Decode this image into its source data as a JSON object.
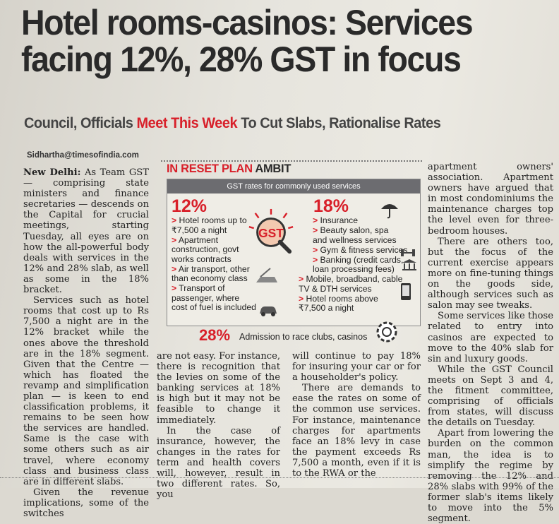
{
  "headline": {
    "line1": "Hotel rooms-casinos: Services",
    "line2": "facing 12%, 28% GST in focus"
  },
  "deck": {
    "part1": "Council, Officials ",
    "part2_red": "Meet This Week",
    "part3": " To Cut Slabs, Rationalise Rates"
  },
  "byline": "Sidhartha@timesofindia.com",
  "col1": {
    "dateline": "New Delhi:",
    "p1": " As Team GST — comprising state ministers and finance secretaries — descends on the Capital for crucial meetings, starting Tuesday, all eyes are on how the all-powerful body deals with services in the 12% and 28% slab, as well as some in the 18% bracket.",
    "p2": "Services such as hotel rooms that cost up to Rs 7,500 a night are in the 12% bracket while the ones above the threshold are in the 18% segment. Given that the Centre — which has floated the revamp and simplification plan — is keen to end classification problems, it remains to be seen how the services are handled. Same is the case with some others such as air travel, where economy class and business class are in different slabs.",
    "p3": "Given the revenue implications, some of the switches"
  },
  "col2": {
    "p1": "are not easy. For instance, there is recognition that the levies on some of the banking services at 18% is high but it may not be feasible to change it immediately.",
    "p2": "In the case of insurance, however, the changes in the rates for term and health covers will, however, result in two different rates. So, you"
  },
  "col3": {
    "p1": "will continue to pay 18% for insuring your car or for a householder's policy.",
    "p2": "There are demands to ease the rates on some of the common use services. For instance, maintenance charges for apartments face an 18% levy in case the payment exceeds Rs 7,500 a month, even if it is to the RWA or the"
  },
  "col4": {
    "p1": "apartment owners' association. Apartment owners have argued that in most condominiums the maintenance charges top the level even for three-bedroom houses.",
    "p2": "There are others too, but the focus of the current exercise appears more on fine-tuning things on the goods side, although services such as salon may see tweaks.",
    "p3": "Some services like those related to entry into casinos are expected to move to the 40% slab for sin and luxury goods.",
    "p4": "While the GST Council meets on Sept 3 and 4, the fitment committee, comprising of officials from states, will discuss the details on Tuesday.",
    "p5": "Apart from lowering the burden on the common man, the idea is to simplify the regime by removing the 12% and 28% slabs with 99% of the former slab's items likely to move into the 5% segment."
  },
  "box": {
    "title_red": "IN RESET PLAN",
    "title_dark": " AMBIT",
    "bar": "GST rates for commonly used services",
    "logo_text": "GST",
    "rate12": "12%",
    "items12": [
      "Hotel rooms up to ₹7,500 a night",
      "Apartment construction, govt works contracts",
      "Air transport, other than economy class",
      "Transport of passenger, where cost of fuel is included"
    ],
    "rate18": "18%",
    "items18": [
      "Insurance",
      "Beauty salon, spa and wellness services",
      "Gym & fitness services",
      "Banking (credit cards, loan processing fees)",
      "Mobile, broadband, cable TV & DTH services",
      "Hotel rooms above ₹7,500 a night"
    ],
    "rate28": "28%",
    "item28": "Admission to race clubs, casinos",
    "arrow": ">",
    "icons": [
      "umbrella-icon",
      "dumbbell-icon",
      "bank-icon",
      "phone-icon",
      "car-icon",
      "casino-chip-icon",
      "crane-icon"
    ]
  },
  "colors": {
    "accent_red": "#d8202a",
    "bar_grey": "#6c6c70",
    "paper": "#e6e4dd"
  }
}
